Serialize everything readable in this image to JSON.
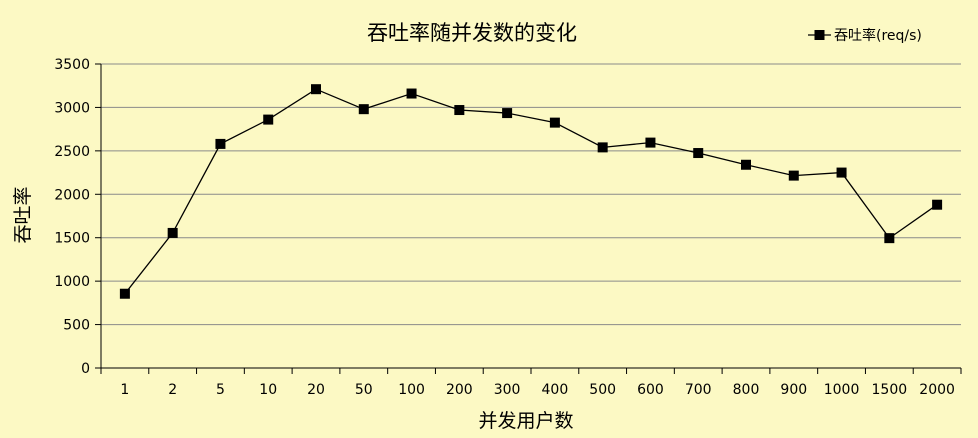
{
  "chart_data": {
    "type": "line",
    "title": "吞吐率随并发数的变化",
    "xlabel": "并发用户数",
    "ylabel": "吞吐率",
    "categories": [
      "1",
      "2",
      "5",
      "10",
      "20",
      "50",
      "100",
      "200",
      "300",
      "400",
      "500",
      "600",
      "700",
      "800",
      "900",
      "1000",
      "1500",
      "2000"
    ],
    "series": [
      {
        "name": "吞吐率(req/s)",
        "values": [
          855,
          1555,
          2580,
          2860,
          3210,
          2980,
          3160,
          2970,
          2935,
          2825,
          2540,
          2595,
          2475,
          2340,
          2215,
          2250,
          1495,
          1880
        ]
      }
    ],
    "ylim": [
      0,
      3500
    ],
    "yticks": [
      "0",
      "500",
      "1000",
      "1500",
      "2000",
      "2500",
      "3000",
      "3500"
    ],
    "grid": true,
    "legend_position": "top-right",
    "colors": {
      "background": "#fcf9c4",
      "line": "#000000",
      "grid": "#8a8a8a"
    }
  }
}
